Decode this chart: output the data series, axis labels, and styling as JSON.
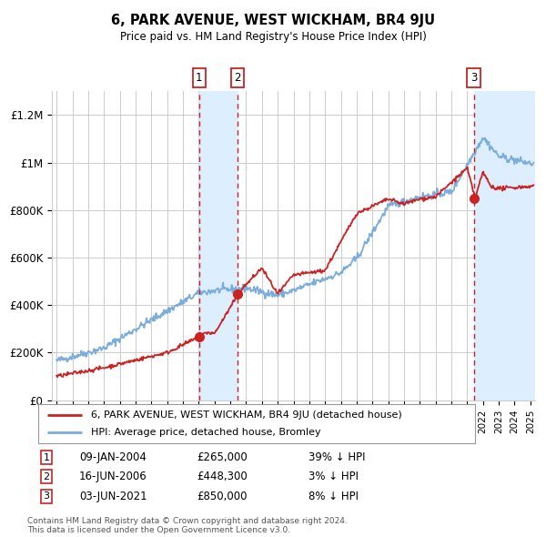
{
  "title": "6, PARK AVENUE, WEST WICKHAM, BR4 9JU",
  "subtitle": "Price paid vs. HM Land Registry's House Price Index (HPI)",
  "ylim": [
    0,
    1300000
  ],
  "yticks": [
    0,
    200000,
    400000,
    600000,
    800000,
    1000000,
    1200000
  ],
  "ytick_labels": [
    "£0",
    "£200K",
    "£400K",
    "£600K",
    "£800K",
    "£1M",
    "£1.2M"
  ],
  "xlim_left": 1994.7,
  "xlim_right": 2025.3,
  "sale_dates": [
    2004.03,
    2006.46,
    2021.42
  ],
  "sale_prices": [
    265000,
    448300,
    850000
  ],
  "sale_labels": [
    "1",
    "2",
    "3"
  ],
  "shade_color": "#ddeeff",
  "legend_line1": "6, PARK AVENUE, WEST WICKHAM, BR4 9JU (detached house)",
  "legend_line2": "HPI: Average price, detached house, Bromley",
  "table_data": [
    [
      "1",
      "09-JAN-2004",
      "£265,000",
      "39% ↓ HPI"
    ],
    [
      "2",
      "16-JUN-2006",
      "£448,300",
      "3% ↓ HPI"
    ],
    [
      "3",
      "03-JUN-2021",
      "£850,000",
      "8% ↓ HPI"
    ]
  ],
  "footnote": "Contains HM Land Registry data © Crown copyright and database right 2024.\nThis data is licensed under the Open Government Licence v3.0.",
  "red_line_color": "#cc2222",
  "blue_line_color": "#7aaddc",
  "background_color": "#ffffff",
  "grid_color": "#cccccc"
}
